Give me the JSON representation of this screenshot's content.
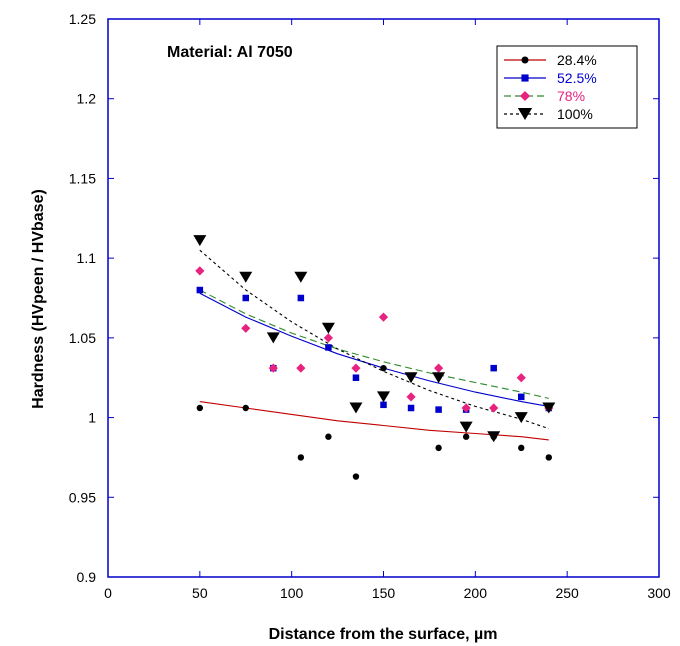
{
  "chart_data": {
    "type": "scatter",
    "xlabel": "Distance from the surface,  µm",
    "ylabel": "Hardness (HVpeen / HVbase)",
    "xlim": [
      0,
      300
    ],
    "ylim": [
      0.9,
      1.25
    ],
    "x_ticks": [
      0,
      50,
      100,
      150,
      200,
      250,
      300
    ],
    "y_ticks": [
      0.9,
      0.95,
      1,
      1.05,
      1.1,
      1.15,
      1.2,
      1.25
    ],
    "x_tick_labels": [
      "0",
      "50",
      "100",
      "150",
      "200",
      "250",
      "300"
    ],
    "y_tick_labels": [
      "0.9",
      "0.95",
      "1",
      "1.05",
      "1.1",
      "1.15",
      "1.2",
      "1.25"
    ],
    "grid": false,
    "legend_position": "top-right",
    "annotation": "Material: Al 7050",
    "series": [
      {
        "name": "28.4%",
        "color": "#000000",
        "line_color": "#c00000",
        "marker": "circle",
        "line_style": "solid",
        "points": [
          [
            50,
            1.006
          ],
          [
            75,
            1.006
          ],
          [
            105,
            0.975
          ],
          [
            120,
            0.988
          ],
          [
            135,
            0.963
          ],
          [
            150,
            1.031
          ],
          [
            180,
            0.981
          ],
          [
            195,
            0.988
          ],
          [
            210,
            0.988
          ],
          [
            225,
            0.981
          ],
          [
            240,
            0.975
          ]
        ],
        "fit": [
          [
            50,
            1.01
          ],
          [
            75,
            1.006
          ],
          [
            100,
            1.002
          ],
          [
            125,
            0.998
          ],
          [
            150,
            0.995
          ],
          [
            175,
            0.992
          ],
          [
            200,
            0.99
          ],
          [
            225,
            0.988
          ],
          [
            240,
            0.986
          ]
        ]
      },
      {
        "name": "52.5%",
        "color": "#0000cc",
        "line_color": "#0000cc",
        "marker": "square",
        "line_style": "solid",
        "points": [
          [
            50,
            1.08
          ],
          [
            75,
            1.075
          ],
          [
            90,
            1.031
          ],
          [
            105,
            1.075
          ],
          [
            120,
            1.044
          ],
          [
            135,
            1.025
          ],
          [
            150,
            1.008
          ],
          [
            165,
            1.006
          ],
          [
            180,
            1.005
          ],
          [
            195,
            1.005
          ],
          [
            210,
            1.031
          ],
          [
            225,
            1.013
          ],
          [
            240,
            1.006
          ]
        ],
        "fit": [
          [
            50,
            1.078
          ],
          [
            75,
            1.063
          ],
          [
            100,
            1.051
          ],
          [
            125,
            1.04
          ],
          [
            150,
            1.031
          ],
          [
            175,
            1.023
          ],
          [
            200,
            1.016
          ],
          [
            225,
            1.01
          ],
          [
            240,
            1.007
          ]
        ]
      },
      {
        "name": "78%",
        "color": "#e8237f",
        "line_color": "#2e8b2e",
        "marker": "diamond",
        "line_style": "dashed",
        "points": [
          [
            50,
            1.092
          ],
          [
            75,
            1.056
          ],
          [
            90,
            1.031
          ],
          [
            105,
            1.031
          ],
          [
            120,
            1.05
          ],
          [
            135,
            1.031
          ],
          [
            150,
            1.063
          ],
          [
            165,
            1.013
          ],
          [
            180,
            1.031
          ],
          [
            195,
            1.006
          ],
          [
            210,
            1.006
          ],
          [
            225,
            1.025
          ],
          [
            240,
            1.006
          ]
        ],
        "fit": [
          [
            50,
            1.08
          ],
          [
            75,
            1.065
          ],
          [
            100,
            1.053
          ],
          [
            125,
            1.043
          ],
          [
            150,
            1.035
          ],
          [
            175,
            1.028
          ],
          [
            200,
            1.022
          ],
          [
            225,
            1.016
          ],
          [
            240,
            1.012
          ]
        ]
      },
      {
        "name": "100%",
        "color": "#000000",
        "line_color": "#000000",
        "marker": "triangle-down",
        "line_style": "dotted",
        "points": [
          [
            50,
            1.111
          ],
          [
            75,
            1.088
          ],
          [
            90,
            1.05
          ],
          [
            105,
            1.088
          ],
          [
            120,
            1.056
          ],
          [
            135,
            1.006
          ],
          [
            150,
            1.013
          ],
          [
            165,
            1.025
          ],
          [
            180,
            1.025
          ],
          [
            195,
            0.994
          ],
          [
            210,
            0.988
          ],
          [
            225,
            1.0
          ],
          [
            240,
            1.006
          ]
        ],
        "fit": [
          [
            50,
            1.105
          ],
          [
            75,
            1.08
          ],
          [
            100,
            1.06
          ],
          [
            125,
            1.043
          ],
          [
            150,
            1.029
          ],
          [
            175,
            1.017
          ],
          [
            200,
            1.007
          ],
          [
            225,
            0.999
          ],
          [
            240,
            0.993
          ]
        ]
      }
    ]
  }
}
